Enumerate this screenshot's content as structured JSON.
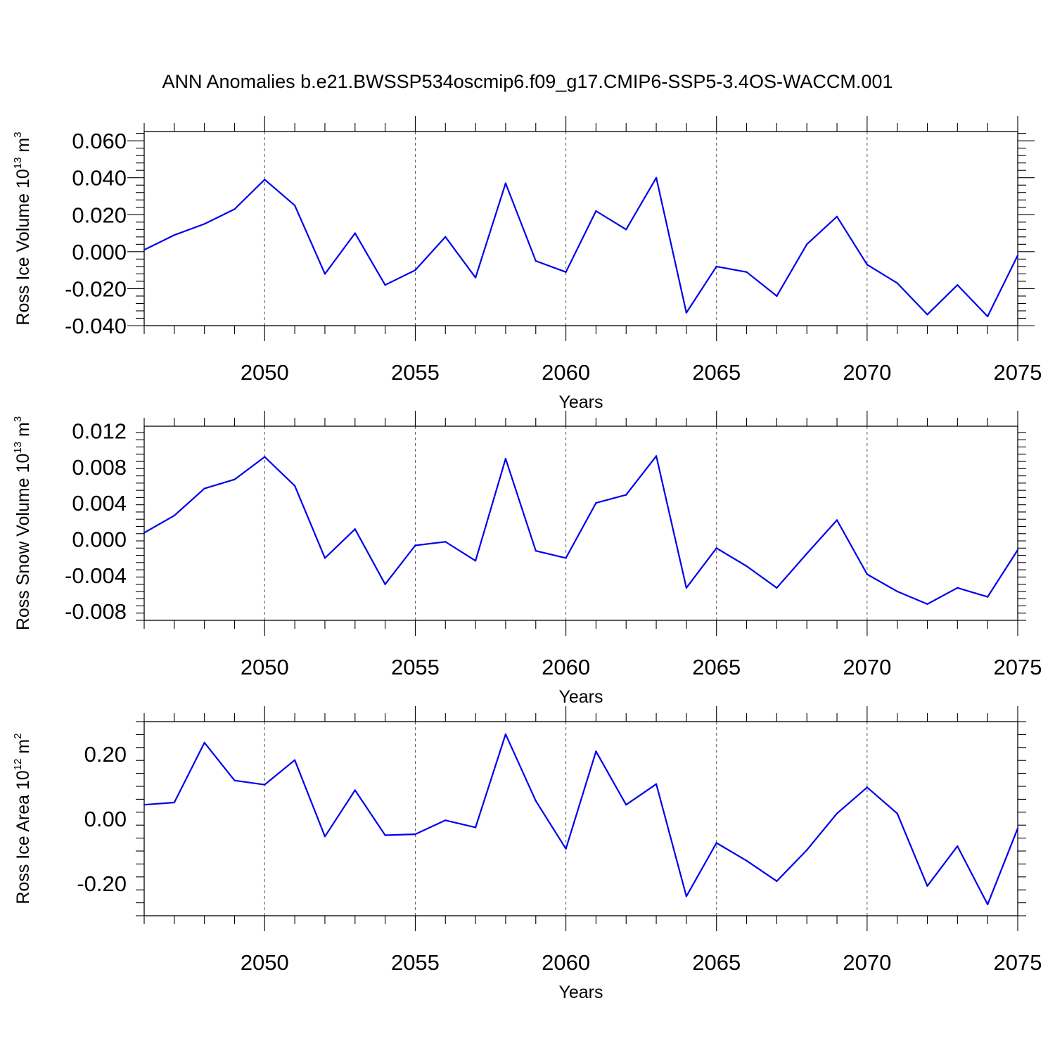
{
  "figure": {
    "title": "ANN Anomalies b.e21.BWSSP534oscmip6.f09_g17.CMIP6-SSP5-3.4OS-WACCM.001"
  },
  "chart_data": [
    {
      "type": "line",
      "xlabel": "Years",
      "ylabel": {
        "prefix": "Ross Ice Volume 10",
        "exponent": "13",
        "unit": " m",
        "unit_exponent": "3"
      },
      "xlim": [
        2046,
        2075
      ],
      "ylim": [
        -0.04,
        0.065
      ],
      "x_ticks": [
        2050,
        2055,
        2060,
        2065,
        2070,
        2075
      ],
      "y_ticks": [
        -0.04,
        -0.02,
        0.0,
        0.02,
        0.04,
        0.06
      ],
      "y_tick_labels": [
        "-0.040",
        "-0.020",
        "0.000",
        "0.020",
        "0.040",
        "0.060"
      ],
      "grid": "vertical dashed at labeled years",
      "color": "#0000ee",
      "x": [
        2046,
        2047,
        2048,
        2049,
        2050,
        2051,
        2052,
        2053,
        2054,
        2055,
        2056,
        2057,
        2058,
        2059,
        2060,
        2061,
        2062,
        2063,
        2064,
        2065,
        2066,
        2067,
        2068,
        2069,
        2070,
        2071,
        2072,
        2073,
        2074,
        2075
      ],
      "values": [
        0.001,
        0.009,
        0.015,
        0.023,
        0.039,
        0.025,
        -0.012,
        0.01,
        -0.018,
        -0.01,
        0.008,
        -0.014,
        0.037,
        -0.005,
        -0.011,
        0.022,
        0.012,
        0.04,
        -0.033,
        -0.008,
        -0.011,
        -0.024,
        0.004,
        0.019,
        -0.007,
        -0.017,
        -0.034,
        -0.018,
        -0.035,
        -0.002
      ]
    },
    {
      "type": "line",
      "xlabel": "Years",
      "ylabel": {
        "prefix": "Ross Snow Volume 10",
        "exponent": "13",
        "unit": " m",
        "unit_exponent": "3"
      },
      "xlim": [
        2046,
        2075
      ],
      "ylim": [
        -0.009,
        0.0125
      ],
      "x_ticks": [
        2050,
        2055,
        2060,
        2065,
        2070,
        2075
      ],
      "y_ticks": [
        -0.008,
        -0.004,
        0.0,
        0.004,
        0.008,
        0.012
      ],
      "y_tick_labels": [
        "-0.008",
        "-0.004",
        "0.000",
        "0.004",
        "0.008",
        "0.012"
      ],
      "grid": "vertical dashed at labeled years",
      "color": "#0000ee",
      "x": [
        2046,
        2047,
        2048,
        2049,
        2050,
        2051,
        2052,
        2053,
        2054,
        2055,
        2056,
        2057,
        2058,
        2059,
        2060,
        2061,
        2062,
        2063,
        2064,
        2065,
        2066,
        2067,
        2068,
        2069,
        2070,
        2071,
        2072,
        2073,
        2074,
        2075
      ],
      "values": [
        0.0007,
        0.0026,
        0.0056,
        0.0066,
        0.0091,
        0.0059,
        -0.0021,
        0.0011,
        -0.005,
        -0.0007,
        -0.0003,
        -0.0024,
        0.0089,
        -0.0013,
        -0.0021,
        0.004,
        0.0049,
        0.0092,
        -0.0054,
        -0.001,
        -0.003,
        -0.0054,
        -0.0016,
        0.0021,
        -0.0039,
        -0.0058,
        -0.0072,
        -0.0054,
        -0.0064,
        -0.0012
      ]
    },
    {
      "type": "line",
      "xlabel": "Years",
      "ylabel": {
        "prefix": "Ross Ice Area 10",
        "exponent": "12",
        "unit": " m",
        "unit_exponent": "2"
      },
      "xlim": [
        2046,
        2075
      ],
      "ylim": [
        -0.3,
        0.3
      ],
      "x_ticks": [
        2050,
        2055,
        2060,
        2065,
        2070,
        2075
      ],
      "y_ticks": [
        -0.2,
        0.0,
        0.2
      ],
      "y_tick_labels": [
        "-0.20",
        "0.00",
        "0.20"
      ],
      "grid": "vertical dashed at labeled years",
      "color": "#0000ee",
      "x": [
        2046,
        2047,
        2048,
        2049,
        2050,
        2051,
        2052,
        2053,
        2054,
        2055,
        2056,
        2057,
        2058,
        2059,
        2060,
        2061,
        2062,
        2063,
        2064,
        2065,
        2066,
        2067,
        2068,
        2069,
        2070,
        2071,
        2072,
        2073,
        2074,
        2075
      ],
      "values": [
        0.043,
        0.05,
        0.235,
        0.118,
        0.105,
        0.181,
        -0.055,
        0.088,
        -0.051,
        -0.048,
        -0.005,
        -0.027,
        0.261,
        0.055,
        -0.093,
        0.208,
        0.043,
        0.107,
        -0.24,
        -0.075,
        -0.13,
        -0.193,
        -0.097,
        0.016,
        0.097,
        0.016,
        -0.208,
        -0.085,
        -0.265,
        -0.03
      ]
    }
  ]
}
